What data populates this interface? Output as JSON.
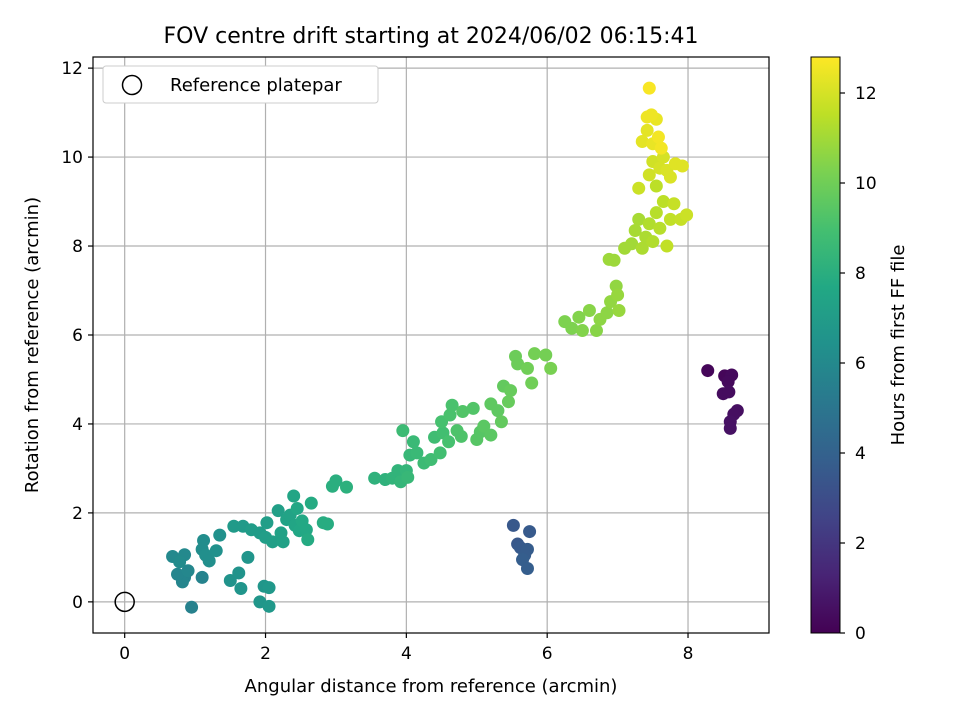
{
  "chart_data": {
    "type": "scatter",
    "title": "FOV centre drift starting at 2024/06/02 06:15:41",
    "xlabel": "Angular distance from reference (arcmin)",
    "ylabel": "Rotation from reference (arcmin)",
    "xlim": [
      -0.45,
      9.15
    ],
    "ylim": [
      -0.7,
      12.25
    ],
    "xticks": [
      0,
      2,
      4,
      6,
      8
    ],
    "yticks": [
      0,
      2,
      4,
      6,
      8,
      10,
      12
    ],
    "grid": true,
    "legend": {
      "position": "top-left",
      "entries": [
        "Reference platepar"
      ]
    },
    "reference_point": {
      "x": 0,
      "y": 0
    },
    "colorbar": {
      "label": "Hours from first FF file",
      "colormap": "viridis",
      "range": [
        0,
        12.8
      ],
      "ticks": [
        0,
        2,
        4,
        6,
        8,
        10,
        12
      ]
    },
    "series": [
      {
        "points": [
          {
            "x": 8.28,
            "y": 5.2,
            "c": 0.2
          },
          {
            "x": 8.52,
            "y": 5.08,
            "c": 0.2
          },
          {
            "x": 8.62,
            "y": 5.1,
            "c": 0.3
          },
          {
            "x": 8.57,
            "y": 4.95,
            "c": 0.3
          },
          {
            "x": 8.5,
            "y": 4.68,
            "c": 0.4
          },
          {
            "x": 8.58,
            "y": 4.72,
            "c": 0.4
          },
          {
            "x": 8.7,
            "y": 4.3,
            "c": 0.5
          },
          {
            "x": 8.65,
            "y": 4.22,
            "c": 0.5
          },
          {
            "x": 8.6,
            "y": 4.05,
            "c": 0.6
          },
          {
            "x": 8.6,
            "y": 3.9,
            "c": 0.6
          },
          {
            "x": 5.52,
            "y": 1.72,
            "c": 3.5
          },
          {
            "x": 5.58,
            "y": 1.3,
            "c": 3.5
          },
          {
            "x": 5.62,
            "y": 1.22,
            "c": 3.6
          },
          {
            "x": 5.75,
            "y": 1.58,
            "c": 3.6
          },
          {
            "x": 5.72,
            "y": 1.18,
            "c": 3.7
          },
          {
            "x": 5.68,
            "y": 1.05,
            "c": 3.7
          },
          {
            "x": 5.65,
            "y": 0.95,
            "c": 3.8
          },
          {
            "x": 5.72,
            "y": 0.75,
            "c": 3.8
          },
          {
            "x": 0.95,
            "y": -0.12,
            "c": 5.6
          },
          {
            "x": 1.1,
            "y": 0.55,
            "c": 5.7
          },
          {
            "x": 0.85,
            "y": 0.55,
            "c": 5.7
          },
          {
            "x": 0.82,
            "y": 0.45,
            "c": 5.8
          },
          {
            "x": 0.75,
            "y": 0.62,
            "c": 5.8
          },
          {
            "x": 0.9,
            "y": 0.7,
            "c": 5.9
          },
          {
            "x": 0.68,
            "y": 1.02,
            "c": 6.0
          },
          {
            "x": 0.85,
            "y": 1.06,
            "c": 6.0
          },
          {
            "x": 0.78,
            "y": 0.9,
            "c": 6.1
          },
          {
            "x": 1.12,
            "y": 1.38,
            "c": 6.2
          },
          {
            "x": 1.1,
            "y": 1.18,
            "c": 6.2
          },
          {
            "x": 1.15,
            "y": 1.05,
            "c": 6.3
          },
          {
            "x": 1.2,
            "y": 0.92,
            "c": 6.3
          },
          {
            "x": 1.3,
            "y": 1.15,
            "c": 6.4
          },
          {
            "x": 1.35,
            "y": 1.5,
            "c": 6.4
          },
          {
            "x": 1.5,
            "y": 0.48,
            "c": 6.5
          },
          {
            "x": 1.62,
            "y": 0.65,
            "c": 6.5
          },
          {
            "x": 1.65,
            "y": 0.3,
            "c": 6.6
          },
          {
            "x": 1.75,
            "y": 1.0,
            "c": 6.6
          },
          {
            "x": 1.92,
            "y": 0.0,
            "c": 6.7
          },
          {
            "x": 1.98,
            "y": 0.35,
            "c": 6.7
          },
          {
            "x": 2.05,
            "y": 0.32,
            "c": 6.8
          },
          {
            "x": 2.05,
            "y": -0.1,
            "c": 6.8
          },
          {
            "x": 1.55,
            "y": 1.7,
            "c": 6.9
          },
          {
            "x": 1.68,
            "y": 1.7,
            "c": 6.9
          },
          {
            "x": 1.8,
            "y": 1.62,
            "c": 7.0
          },
          {
            "x": 1.92,
            "y": 1.55,
            "c": 7.0
          },
          {
            "x": 2.0,
            "y": 1.45,
            "c": 7.1
          },
          {
            "x": 2.02,
            "y": 1.78,
            "c": 7.1
          },
          {
            "x": 2.1,
            "y": 1.35,
            "c": 7.2
          },
          {
            "x": 2.18,
            "y": 2.05,
            "c": 7.2
          },
          {
            "x": 2.22,
            "y": 1.55,
            "c": 7.3
          },
          {
            "x": 2.25,
            "y": 1.35,
            "c": 7.3
          },
          {
            "x": 2.3,
            "y": 1.85,
            "c": 7.4
          },
          {
            "x": 2.35,
            "y": 1.95,
            "c": 7.4
          },
          {
            "x": 2.4,
            "y": 2.38,
            "c": 7.5
          },
          {
            "x": 2.42,
            "y": 1.72,
            "c": 7.5
          },
          {
            "x": 2.48,
            "y": 1.6,
            "c": 7.6
          },
          {
            "x": 2.45,
            "y": 2.1,
            "c": 7.6
          },
          {
            "x": 2.52,
            "y": 1.82,
            "c": 7.7
          },
          {
            "x": 2.58,
            "y": 1.62,
            "c": 7.7
          },
          {
            "x": 2.6,
            "y": 1.4,
            "c": 7.8
          },
          {
            "x": 2.65,
            "y": 2.22,
            "c": 7.8
          },
          {
            "x": 2.82,
            "y": 1.78,
            "c": 7.9
          },
          {
            "x": 2.88,
            "y": 1.75,
            "c": 7.9
          },
          {
            "x": 2.95,
            "y": 2.6,
            "c": 8.0
          },
          {
            "x": 3.0,
            "y": 2.72,
            "c": 8.0
          },
          {
            "x": 3.15,
            "y": 2.58,
            "c": 8.1
          },
          {
            "x": 3.55,
            "y": 2.78,
            "c": 8.2
          },
          {
            "x": 3.7,
            "y": 2.75,
            "c": 8.2
          },
          {
            "x": 3.8,
            "y": 2.78,
            "c": 8.3
          },
          {
            "x": 3.88,
            "y": 2.95,
            "c": 8.3
          },
          {
            "x": 3.92,
            "y": 2.7,
            "c": 8.4
          },
          {
            "x": 4.0,
            "y": 2.95,
            "c": 8.4
          },
          {
            "x": 4.02,
            "y": 2.8,
            "c": 8.5
          },
          {
            "x": 4.05,
            "y": 3.3,
            "c": 8.5
          },
          {
            "x": 4.1,
            "y": 3.6,
            "c": 8.6
          },
          {
            "x": 4.15,
            "y": 3.35,
            "c": 8.6
          },
          {
            "x": 3.95,
            "y": 3.85,
            "c": 8.7
          },
          {
            "x": 4.25,
            "y": 3.12,
            "c": 8.7
          },
          {
            "x": 4.35,
            "y": 3.2,
            "c": 8.8
          },
          {
            "x": 4.4,
            "y": 3.7,
            "c": 8.8
          },
          {
            "x": 4.48,
            "y": 3.35,
            "c": 8.9
          },
          {
            "x": 4.52,
            "y": 3.8,
            "c": 8.9
          },
          {
            "x": 4.5,
            "y": 4.05,
            "c": 9.0
          },
          {
            "x": 4.6,
            "y": 3.6,
            "c": 9.0
          },
          {
            "x": 4.62,
            "y": 4.2,
            "c": 9.1
          },
          {
            "x": 4.65,
            "y": 4.42,
            "c": 9.1
          },
          {
            "x": 4.72,
            "y": 3.85,
            "c": 9.2
          },
          {
            "x": 4.78,
            "y": 3.72,
            "c": 9.2
          },
          {
            "x": 4.8,
            "y": 4.28,
            "c": 9.3
          },
          {
            "x": 4.95,
            "y": 4.35,
            "c": 9.3
          },
          {
            "x": 5.0,
            "y": 3.65,
            "c": 9.4
          },
          {
            "x": 5.05,
            "y": 3.82,
            "c": 9.4
          },
          {
            "x": 5.1,
            "y": 3.95,
            "c": 9.5
          },
          {
            "x": 5.2,
            "y": 3.75,
            "c": 9.5
          },
          {
            "x": 5.2,
            "y": 4.45,
            "c": 9.6
          },
          {
            "x": 5.3,
            "y": 4.3,
            "c": 9.6
          },
          {
            "x": 5.35,
            "y": 4.05,
            "c": 9.7
          },
          {
            "x": 5.38,
            "y": 4.85,
            "c": 9.7
          },
          {
            "x": 5.45,
            "y": 4.5,
            "c": 9.8
          },
          {
            "x": 5.48,
            "y": 4.75,
            "c": 9.8
          },
          {
            "x": 5.55,
            "y": 5.52,
            "c": 9.9
          },
          {
            "x": 5.58,
            "y": 5.35,
            "c": 9.9
          },
          {
            "x": 5.72,
            "y": 5.25,
            "c": 10.0
          },
          {
            "x": 5.78,
            "y": 4.92,
            "c": 10.0
          },
          {
            "x": 5.82,
            "y": 5.58,
            "c": 10.1
          },
          {
            "x": 5.98,
            "y": 5.55,
            "c": 10.1
          },
          {
            "x": 6.05,
            "y": 5.25,
            "c": 10.2
          },
          {
            "x": 6.25,
            "y": 6.3,
            "c": 10.3
          },
          {
            "x": 6.35,
            "y": 6.15,
            "c": 10.3
          },
          {
            "x": 6.45,
            "y": 6.4,
            "c": 10.4
          },
          {
            "x": 6.5,
            "y": 6.1,
            "c": 10.4
          },
          {
            "x": 6.6,
            "y": 6.55,
            "c": 10.5
          },
          {
            "x": 6.7,
            "y": 6.1,
            "c": 10.5
          },
          {
            "x": 6.75,
            "y": 6.35,
            "c": 10.6
          },
          {
            "x": 6.85,
            "y": 6.5,
            "c": 10.6
          },
          {
            "x": 6.9,
            "y": 6.75,
            "c": 10.7
          },
          {
            "x": 6.98,
            "y": 7.1,
            "c": 10.7
          },
          {
            "x": 7.0,
            "y": 6.9,
            "c": 10.8
          },
          {
            "x": 7.02,
            "y": 6.55,
            "c": 10.8
          },
          {
            "x": 6.88,
            "y": 7.7,
            "c": 10.9
          },
          {
            "x": 6.95,
            "y": 7.68,
            "c": 10.9
          },
          {
            "x": 7.1,
            "y": 7.95,
            "c": 11.0
          },
          {
            "x": 7.2,
            "y": 8.05,
            "c": 11.0
          },
          {
            "x": 7.25,
            "y": 8.35,
            "c": 11.1
          },
          {
            "x": 7.3,
            "y": 8.6,
            "c": 11.1
          },
          {
            "x": 7.35,
            "y": 7.95,
            "c": 11.2
          },
          {
            "x": 7.4,
            "y": 8.2,
            "c": 11.2
          },
          {
            "x": 7.45,
            "y": 8.5,
            "c": 11.3
          },
          {
            "x": 7.5,
            "y": 8.1,
            "c": 11.3
          },
          {
            "x": 7.55,
            "y": 8.75,
            "c": 11.4
          },
          {
            "x": 7.6,
            "y": 8.4,
            "c": 11.4
          },
          {
            "x": 7.65,
            "y": 9.0,
            "c": 11.5
          },
          {
            "x": 7.55,
            "y": 9.35,
            "c": 11.5
          },
          {
            "x": 7.7,
            "y": 8.0,
            "c": 11.6
          },
          {
            "x": 7.75,
            "y": 8.6,
            "c": 11.6
          },
          {
            "x": 7.8,
            "y": 8.95,
            "c": 11.7
          },
          {
            "x": 7.9,
            "y": 8.6,
            "c": 11.7
          },
          {
            "x": 7.98,
            "y": 8.7,
            "c": 11.8
          },
          {
            "x": 7.3,
            "y": 9.3,
            "c": 11.8
          },
          {
            "x": 7.45,
            "y": 9.6,
            "c": 11.9
          },
          {
            "x": 7.5,
            "y": 9.9,
            "c": 11.9
          },
          {
            "x": 7.6,
            "y": 9.75,
            "c": 12.0
          },
          {
            "x": 7.65,
            "y": 10.0,
            "c": 12.0
          },
          {
            "x": 7.7,
            "y": 9.7,
            "c": 12.1
          },
          {
            "x": 7.75,
            "y": 9.55,
            "c": 12.1
          },
          {
            "x": 7.82,
            "y": 9.85,
            "c": 12.2
          },
          {
            "x": 7.92,
            "y": 9.8,
            "c": 12.2
          },
          {
            "x": 7.35,
            "y": 10.35,
            "c": 12.3
          },
          {
            "x": 7.42,
            "y": 10.6,
            "c": 12.3
          },
          {
            "x": 7.5,
            "y": 10.3,
            "c": 12.4
          },
          {
            "x": 7.55,
            "y": 10.85,
            "c": 12.4
          },
          {
            "x": 7.42,
            "y": 10.9,
            "c": 12.5
          },
          {
            "x": 7.48,
            "y": 10.95,
            "c": 12.5
          },
          {
            "x": 7.58,
            "y": 10.45,
            "c": 12.6
          },
          {
            "x": 7.62,
            "y": 10.2,
            "c": 12.6
          },
          {
            "x": 7.45,
            "y": 11.55,
            "c": 12.7
          }
        ]
      }
    ]
  }
}
